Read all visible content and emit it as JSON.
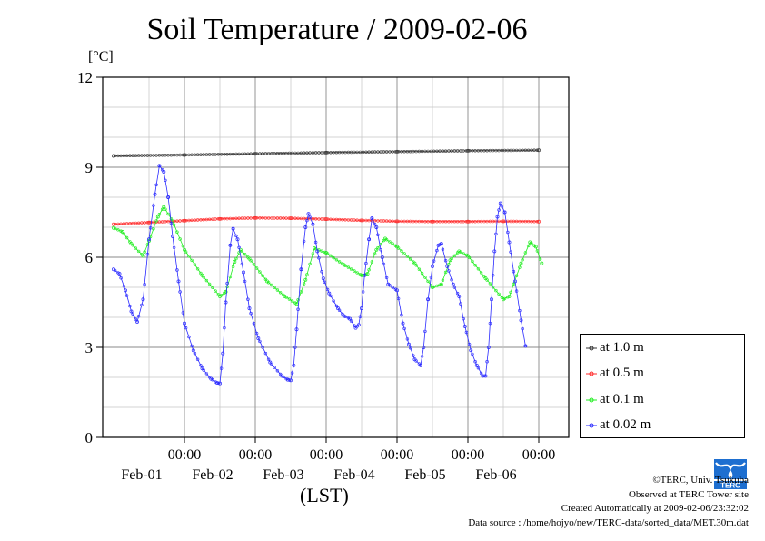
{
  "title": "Soil Temperature / 2009-02-06",
  "unit_label": "[°C]",
  "x_axis_title": "(LST)",
  "legend": [
    {
      "label": "at 1.0 m",
      "color": "#333333"
    },
    {
      "label": "at 0.5 m",
      "color": "#ff2a2a"
    },
    {
      "label": "at 0.1 m",
      "color": "#22ee22"
    },
    {
      "label": "at 0.02 m",
      "color": "#2a2aff"
    }
  ],
  "footer": {
    "copyright": "©TERC, Univ. Tsukuba",
    "site": "Observed at TERC Tower site",
    "created": "Created Automatically at 2009-02-06/23:32:02",
    "source": "Data source : /home/hojyo/new/TERC-data/sorted_data/MET.30m.dat"
  },
  "logo": {
    "text": "TERC",
    "color": "#1e6fd0",
    "icon": "terc-logo-icon"
  },
  "chart_data": {
    "type": "line",
    "x_unit": "hours from 2009-01-31 00:00 LST",
    "x_range": [
      0,
      144
    ],
    "ylim": [
      0,
      12
    ],
    "yticks": [
      0,
      3,
      6,
      9,
      12
    ],
    "grid": true,
    "legend_position": "right",
    "x_major_ticks": [
      {
        "x": 24,
        "time": "00:00",
        "date": "Feb-01"
      },
      {
        "x": 48,
        "time": "00:00",
        "date": "Feb-02"
      },
      {
        "x": 72,
        "time": "00:00",
        "date": "Feb-03"
      },
      {
        "x": 96,
        "time": "00:00",
        "date": "Feb-04"
      },
      {
        "x": 120,
        "time": "00:00",
        "date": "Feb-05"
      },
      {
        "x": 144,
        "time": "00:00",
        "date": "Feb-06"
      }
    ],
    "x_minor_gridlines": [
      12,
      36,
      60,
      84,
      108,
      132
    ],
    "series": [
      {
        "name": "at 1.0 m",
        "color": "#333333",
        "points": [
          [
            0,
            9.38
          ],
          [
            24,
            9.41
          ],
          [
            48,
            9.45
          ],
          [
            72,
            9.49
          ],
          [
            96,
            9.52
          ],
          [
            120,
            9.55
          ],
          [
            144,
            9.57
          ]
        ]
      },
      {
        "name": "at 0.5 m",
        "color": "#ff2a2a",
        "points": [
          [
            0,
            7.1
          ],
          [
            12,
            7.16
          ],
          [
            24,
            7.22
          ],
          [
            36,
            7.28
          ],
          [
            48,
            7.31
          ],
          [
            60,
            7.3
          ],
          [
            72,
            7.27
          ],
          [
            84,
            7.23
          ],
          [
            96,
            7.2
          ],
          [
            108,
            7.19
          ],
          [
            120,
            7.19
          ],
          [
            132,
            7.2
          ],
          [
            144,
            7.19
          ]
        ]
      },
      {
        "name": "at 0.1 m",
        "color": "#22ee22",
        "points": [
          [
            0,
            6.98
          ],
          [
            3,
            6.85
          ],
          [
            6,
            6.45
          ],
          [
            10,
            6.05
          ],
          [
            12,
            6.55
          ],
          [
            15,
            7.35
          ],
          [
            17,
            7.68
          ],
          [
            20,
            7.2
          ],
          [
            24,
            6.25
          ],
          [
            30,
            5.4
          ],
          [
            36,
            4.7
          ],
          [
            38,
            4.85
          ],
          [
            41,
            5.85
          ],
          [
            43,
            6.25
          ],
          [
            46,
            5.95
          ],
          [
            52,
            5.2
          ],
          [
            58,
            4.7
          ],
          [
            62,
            4.45
          ],
          [
            65,
            5.25
          ],
          [
            68,
            6.3
          ],
          [
            72,
            6.15
          ],
          [
            78,
            5.75
          ],
          [
            84,
            5.4
          ],
          [
            86,
            5.45
          ],
          [
            89,
            6.25
          ],
          [
            92,
            6.62
          ],
          [
            96,
            6.35
          ],
          [
            102,
            5.8
          ],
          [
            108,
            5.0
          ],
          [
            111,
            5.1
          ],
          [
            114,
            5.9
          ],
          [
            117,
            6.2
          ],
          [
            120,
            6.05
          ],
          [
            126,
            5.3
          ],
          [
            132,
            4.6
          ],
          [
            134,
            4.7
          ],
          [
            138,
            5.8
          ],
          [
            141,
            6.5
          ],
          [
            143,
            6.35
          ],
          [
            145,
            5.8
          ]
        ]
      },
      {
        "name": "at 0.02 m",
        "color": "#2a2aff",
        "points": [
          [
            0,
            5.6
          ],
          [
            2,
            5.45
          ],
          [
            4,
            4.9
          ],
          [
            6,
            4.2
          ],
          [
            8,
            3.85
          ],
          [
            10,
            4.6
          ],
          [
            12,
            6.6
          ],
          [
            14,
            8.1
          ],
          [
            15.5,
            9.05
          ],
          [
            17,
            8.85
          ],
          [
            18.5,
            8.0
          ],
          [
            20,
            6.7
          ],
          [
            22,
            5.2
          ],
          [
            24,
            3.8
          ],
          [
            27,
            2.9
          ],
          [
            30,
            2.3
          ],
          [
            33,
            1.95
          ],
          [
            35,
            1.82
          ],
          [
            36,
            1.8
          ],
          [
            37,
            2.8
          ],
          [
            38,
            4.5
          ],
          [
            39.5,
            6.4
          ],
          [
            40.5,
            6.95
          ],
          [
            42,
            6.6
          ],
          [
            44,
            5.5
          ],
          [
            46,
            4.3
          ],
          [
            49,
            3.3
          ],
          [
            53,
            2.5
          ],
          [
            57,
            2.05
          ],
          [
            59,
            1.92
          ],
          [
            60,
            1.9
          ],
          [
            61,
            2.4
          ],
          [
            62,
            3.6
          ],
          [
            63.5,
            5.6
          ],
          [
            65,
            7.0
          ],
          [
            66,
            7.45
          ],
          [
            67.5,
            7.1
          ],
          [
            69,
            6.2
          ],
          [
            71,
            5.3
          ],
          [
            73,
            4.8
          ],
          [
            76,
            4.3
          ],
          [
            78,
            4.05
          ],
          [
            80,
            3.95
          ],
          [
            82,
            3.65
          ],
          [
            83,
            3.75
          ],
          [
            84,
            4.3
          ],
          [
            85,
            5.4
          ],
          [
            86.5,
            6.6
          ],
          [
            87.5,
            7.3
          ],
          [
            89,
            7.0
          ],
          [
            91,
            6.0
          ],
          [
            93,
            5.1
          ],
          [
            96,
            4.9
          ],
          [
            98,
            3.8
          ],
          [
            100,
            3.1
          ],
          [
            102,
            2.6
          ],
          [
            104,
            2.4
          ],
          [
            105,
            3.0
          ],
          [
            106.5,
            4.6
          ],
          [
            108,
            5.7
          ],
          [
            110,
            6.4
          ],
          [
            111,
            6.45
          ],
          [
            113,
            5.7
          ],
          [
            115,
            5.1
          ],
          [
            117,
            4.7
          ],
          [
            119,
            3.7
          ],
          [
            121,
            2.9
          ],
          [
            123,
            2.4
          ],
          [
            125,
            2.05
          ],
          [
            126,
            2.05
          ],
          [
            127,
            3.0
          ],
          [
            128,
            4.6
          ],
          [
            129,
            6.2
          ],
          [
            130,
            7.35
          ],
          [
            131,
            7.8
          ],
          [
            132.5,
            7.5
          ],
          [
            134,
            6.5
          ],
          [
            136,
            5.2
          ],
          [
            138,
            3.9
          ],
          [
            139.5,
            3.05
          ]
        ]
      }
    ]
  }
}
